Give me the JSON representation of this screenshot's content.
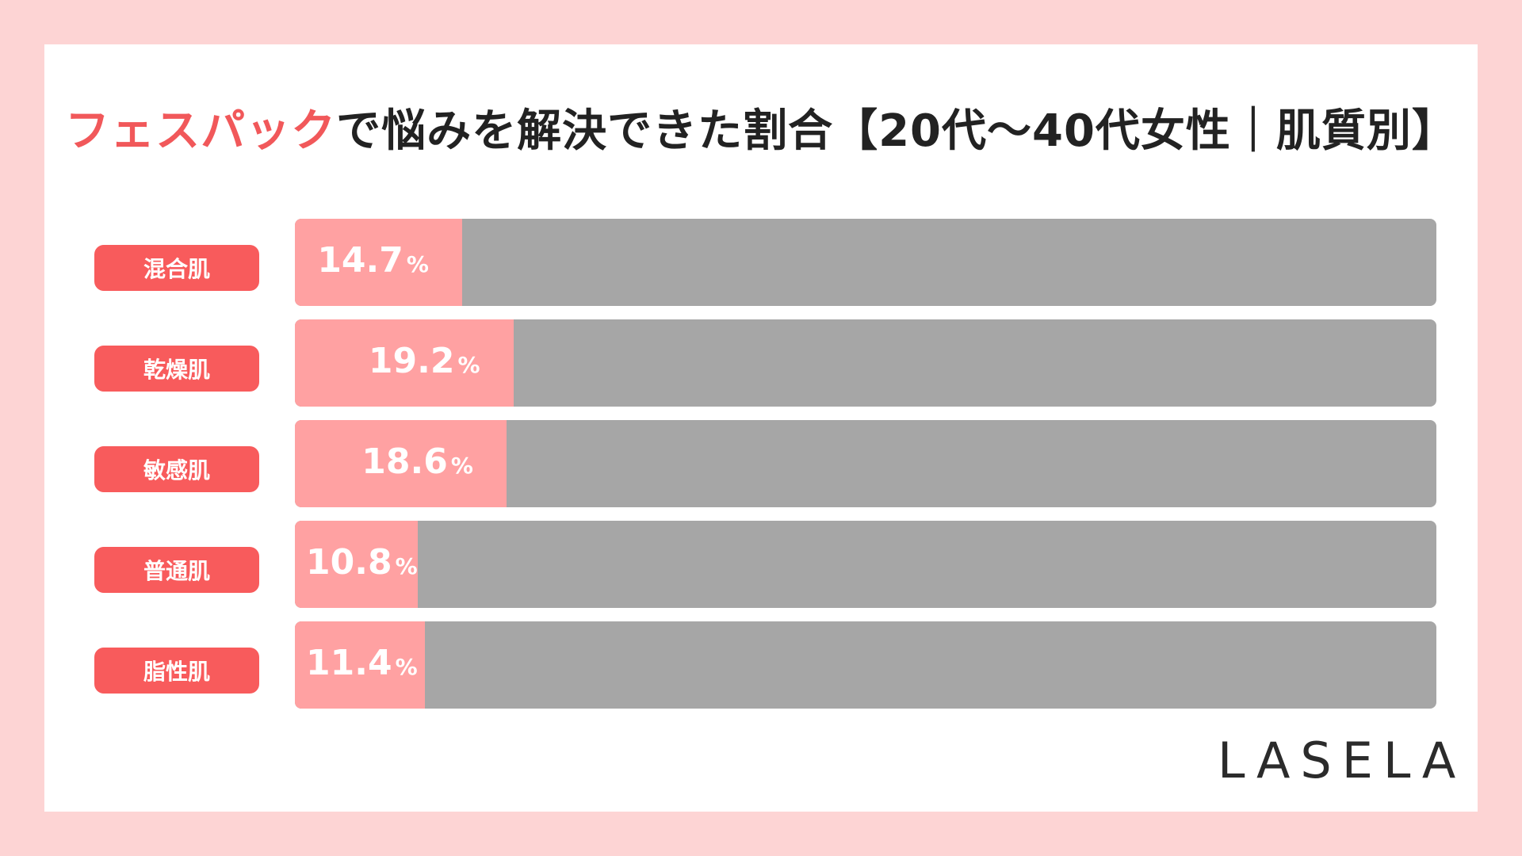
{
  "colors": {
    "background": "#fdd4d4",
    "card": "#ffffff",
    "accent": "#f1585a",
    "bar_fill": "#ffa1a2",
    "bar_track": "#a6a6a6",
    "label_bg": "#f85b5c"
  },
  "title": {
    "highlight": "フェスパック",
    "rest": "で悩みを解決できた割合【20代〜40代女性｜肌質別】"
  },
  "chart_data": {
    "type": "bar",
    "orientation": "horizontal",
    "title": "フェスパックで悩みを解決できた割合【20代〜40代女性｜肌質別】",
    "categories": [
      "混合肌",
      "乾燥肌",
      "敏感肌",
      "普通肌",
      "脂性肌"
    ],
    "values": [
      14.7,
      19.2,
      18.6,
      10.8,
      11.4
    ],
    "unit": "%",
    "xlim": [
      0,
      100
    ],
    "grid": false
  },
  "logo": "LASELA"
}
